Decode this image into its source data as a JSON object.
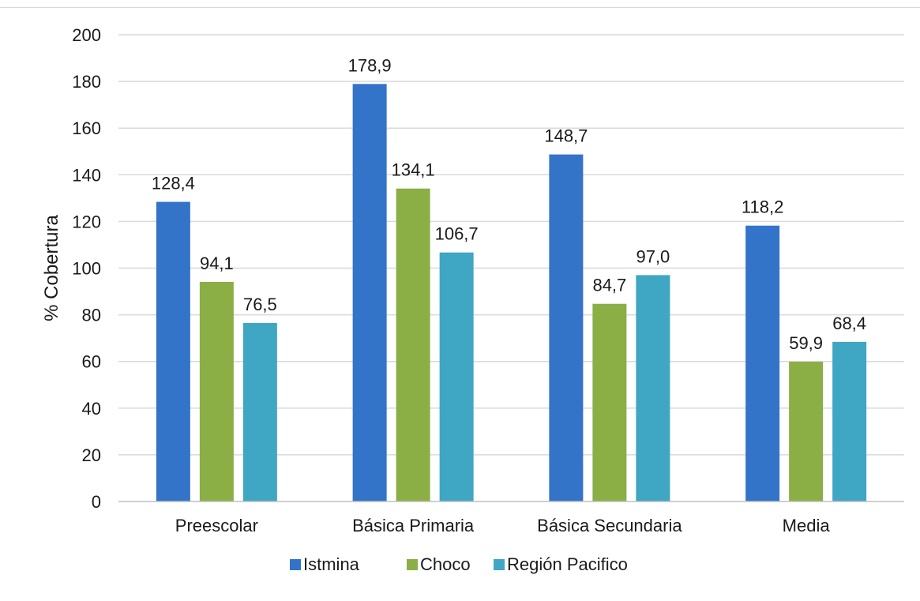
{
  "chart_data": {
    "type": "bar",
    "title": "",
    "xlabel": "",
    "ylabel": "% Cobertura",
    "ylim": [
      0,
      200
    ],
    "yticks": [
      0,
      20,
      40,
      60,
      80,
      100,
      120,
      140,
      160,
      180,
      200
    ],
    "grid": true,
    "legend_position": "bottom",
    "categories": [
      "Preescolar",
      "Básica Primaria",
      "Básica Secundaria",
      "Media"
    ],
    "series": [
      {
        "name": "Istmina",
        "color": "#3374c8",
        "values": [
          128.4,
          178.9,
          148.7,
          118.2
        ],
        "labels": [
          "128,4",
          "178,9",
          "148,7",
          "118,2"
        ]
      },
      {
        "name": "Choco",
        "color": "#8bae45",
        "values": [
          94.1,
          134.1,
          84.7,
          59.9
        ],
        "labels": [
          "94,1",
          "134,1",
          "84,7",
          "59,9"
        ]
      },
      {
        "name": "Región Pacifico",
        "color": "#3fa6c4",
        "values": [
          76.5,
          106.7,
          97.0,
          68.4
        ],
        "labels": [
          "76,5",
          "106,7",
          "97,0",
          "68,4"
        ]
      }
    ]
  }
}
